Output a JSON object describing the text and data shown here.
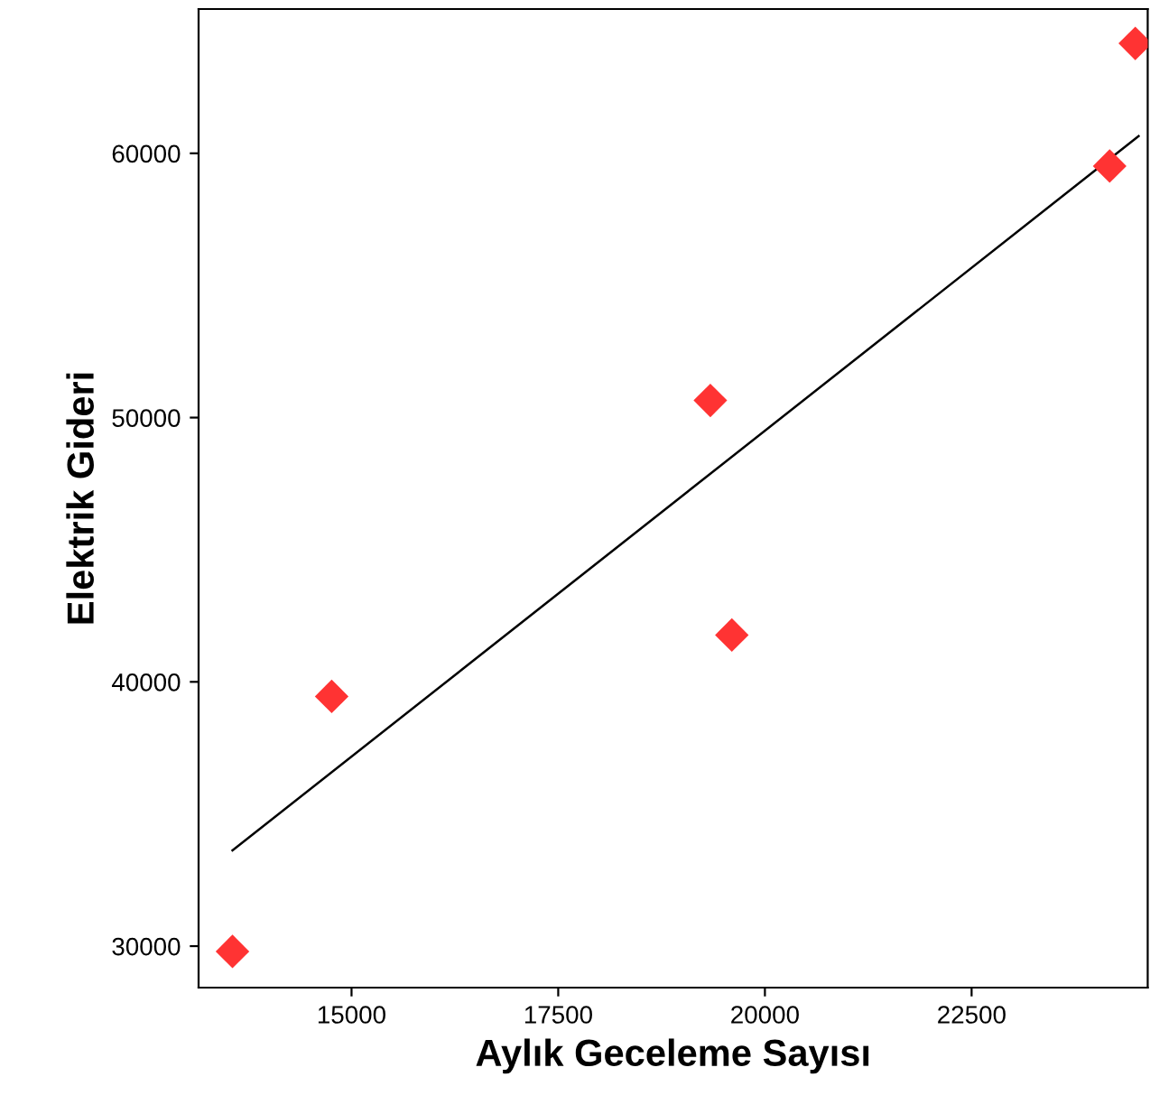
{
  "chart_data": {
    "type": "scatter",
    "xlabel": "Aylık Geceleme Sayısı",
    "ylabel": "Elektrik Gideri",
    "marker": "diamond",
    "grid": false,
    "legend": false,
    "xlim": [
      13150,
      24630
    ],
    "ylim": [
      28430,
      65460
    ],
    "xticks": [
      15000,
      17500,
      20000,
      22500
    ],
    "yticks": [
      30000,
      40000,
      50000,
      60000
    ],
    "series": [
      {
        "color": "#ff3333",
        "x": [
          13560,
          14760,
          19340,
          19600,
          24170,
          24480
        ],
        "values": [
          29800,
          39450,
          50650,
          41770,
          59520,
          64160
        ]
      },
      {
        "type": "line",
        "color": "#000000",
        "line_style": "solid",
        "marker": "none",
        "x": [
          13560,
          24520
        ],
        "values": [
          33620,
          60650
        ]
      }
    ]
  }
}
